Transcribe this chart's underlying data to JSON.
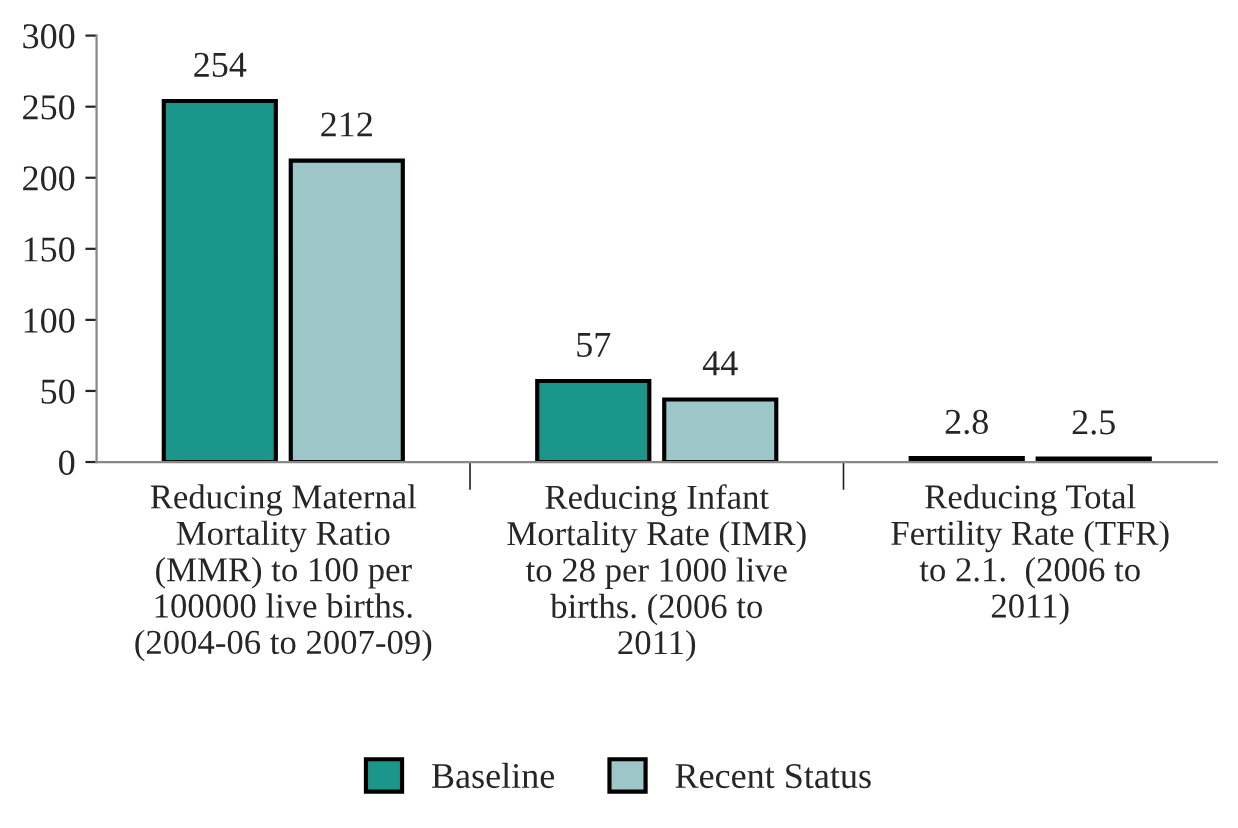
{
  "chart_data": {
    "type": "bar",
    "categories": [
      "Reducing Maternal\nMortality Ratio\n(MMR) to 100 per\n100000 live births.\n(2004-06 to 2007-09)",
      "Reducing Infant\nMortality Rate (IMR)\nto 28 per 1000 live\nbirths. (2006 to\n2011)",
      "Reducing Total\nFertility Rate (TFR)\nto 2.1.  (2006 to\n2011)"
    ],
    "series": [
      {
        "name": "Baseline",
        "color": "#1a968a",
        "values": [
          254,
          57,
          2.8
        ]
      },
      {
        "name": "Recent Status",
        "color": "#9cc6c8",
        "values": [
          212,
          44,
          2.5
        ]
      }
    ],
    "ylim": [
      0,
      300
    ],
    "yticks": [
      0,
      50,
      100,
      150,
      200,
      250,
      300
    ],
    "data_labels": true,
    "grid": false,
    "legend": "bottom"
  }
}
